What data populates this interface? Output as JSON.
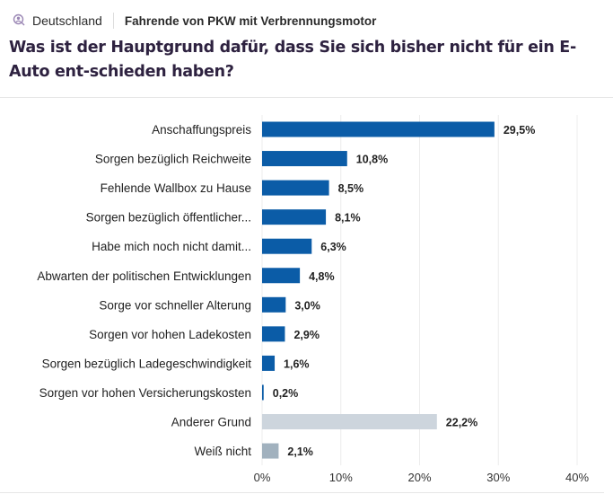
{
  "header": {
    "country": "Deutschland",
    "segment": "Fahrende von PKW mit Verbrennungsmotor",
    "icon": "person-search-icon"
  },
  "question": "Was ist der Hauptgrund dafür, dass Sie sich bisher nicht für ein E-Auto ent-schieden haben?",
  "chart_data": {
    "type": "bar",
    "orientation": "horizontal",
    "categories": [
      "Anschaffungspreis",
      "Sorgen bezüglich Reichweite",
      "Fehlende Wallbox zu Hause",
      "Sorgen bezüglich öffentlicher...",
      "Habe mich noch nicht damit...",
      "Abwarten der politischen Entwicklungen",
      "Sorge vor schneller Alterung",
      "Sorgen vor hohen Ladekosten",
      "Sorgen bezüglich Ladegeschwindigkeit",
      "Sorgen vor hohen Versicherungskosten",
      "Anderer Grund",
      "Weiß nicht"
    ],
    "values": [
      29.5,
      10.8,
      8.5,
      8.1,
      6.3,
      4.8,
      3.0,
      2.9,
      1.6,
      0.2,
      22.2,
      2.1
    ],
    "labels": [
      "29,5%",
      "10,8%",
      "8,5%",
      "8,1%",
      "6,3%",
      "4,8%",
      "3,0%",
      "2,9%",
      "1,6%",
      "0,2%",
      "22,2%",
      "2,1%"
    ],
    "colors": [
      "#0b5ca7",
      "#0b5ca7",
      "#0b5ca7",
      "#0b5ca7",
      "#0b5ca7",
      "#0b5ca7",
      "#0b5ca7",
      "#0b5ca7",
      "#0b5ca7",
      "#0b5ca7",
      "#cdd5dd",
      "#a1b1be"
    ],
    "xlim": [
      0,
      40
    ],
    "xticks": [
      "0%",
      "10%",
      "20%",
      "30%",
      "40%"
    ],
    "grid": true
  }
}
